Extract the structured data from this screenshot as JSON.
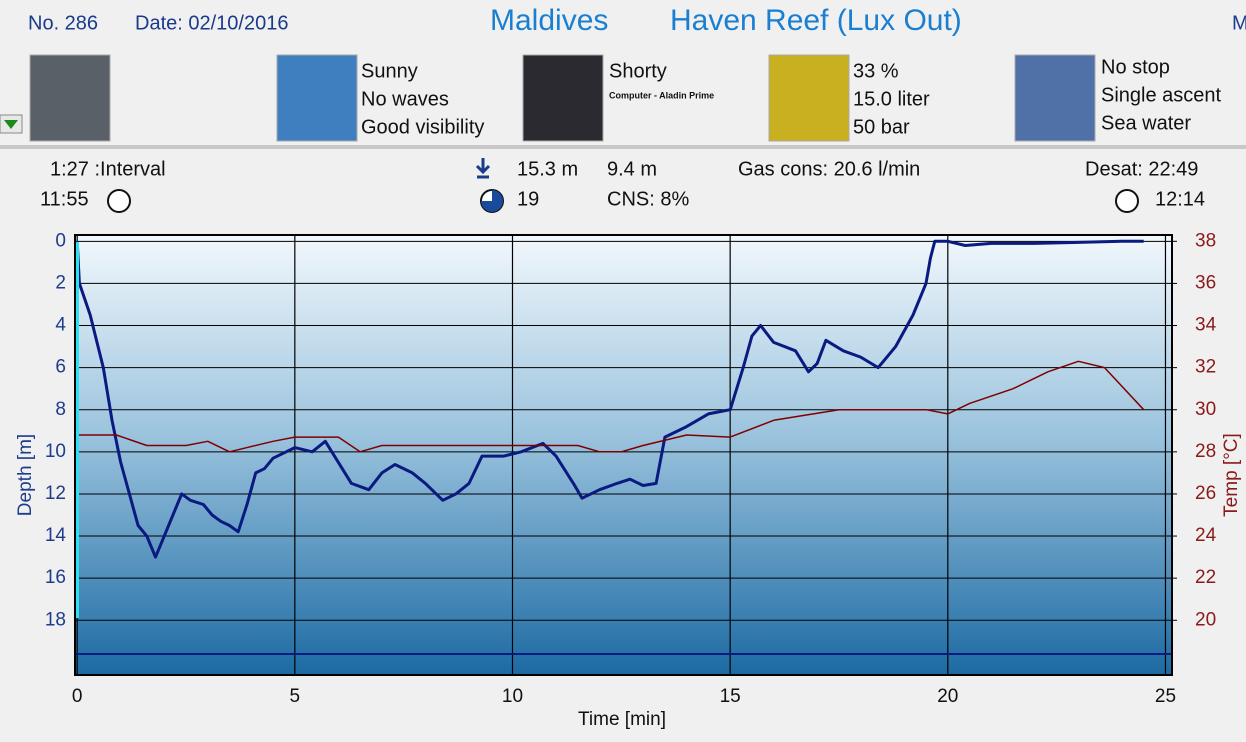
{
  "header": {
    "number": "No. 286",
    "date": "Date: 02/10/2016",
    "location": "Maldives",
    "site": "Haven Reef (Lux Out)",
    "cut": "M"
  },
  "conditions": {
    "weather": [
      "Sunny",
      "No waves",
      "Good visibility"
    ],
    "suit": [
      "Shorty",
      "Computer - Aladin Prime"
    ],
    "tank": [
      "33 %",
      "15.0 liter",
      "50 bar"
    ],
    "dive": [
      "No stop",
      "Single ascent",
      "Sea water"
    ]
  },
  "stats": {
    "interval": "1:27 :Interval",
    "entry_time": "11:55",
    "max_depth": "15.3 m",
    "avg_depth": "9.4 m",
    "gas_cons": "Gas cons: 20.6 l/min",
    "desat": "Desat: 22:49",
    "duration": "19",
    "cns": "CNS:  8%",
    "exit_time": "12:14"
  },
  "chart_data": {
    "type": "line",
    "x_label": "Time [min]",
    "y_label": "Depth [m]",
    "y2_label": "Temp [°C]",
    "xlim": [
      -0.05,
      25.15
    ],
    "xticks": [
      0,
      5,
      10,
      15,
      20,
      25
    ],
    "ylim": [
      20.6,
      -0.3
    ],
    "yticks": [
      0,
      2,
      4,
      6,
      8,
      10,
      12,
      14,
      16,
      18
    ],
    "y2lim": [
      17.4,
      38.3
    ],
    "y2ticks": [
      20,
      22,
      24,
      26,
      28,
      30,
      32,
      34,
      36,
      38
    ],
    "grid": true,
    "series": [
      {
        "color": "#0a1a80",
        "x": [
          0,
          0.05,
          0.3,
          0.6,
          0.8,
          1.0,
          1.2,
          1.4,
          1.6,
          1.8,
          1.9,
          2.1,
          2.3,
          2.4,
          2.6,
          2.9,
          3.1,
          3.3,
          3.5,
          3.7,
          3.9,
          4.1,
          4.3,
          4.5,
          5.0,
          5.4,
          5.7,
          6.0,
          6.3,
          6.7,
          7.0,
          7.3,
          7.7,
          8.0,
          8.4,
          8.7,
          9.0,
          9.3,
          9.8,
          10.2,
          10.7,
          11.0,
          11.4,
          11.6,
          12.0,
          12.4,
          12.7,
          13.0,
          13.3,
          13.5,
          14.0,
          14.5,
          15.0,
          15.3,
          15.5,
          15.7,
          16.0,
          16.5,
          16.8,
          17.0,
          17.2,
          17.6,
          18.0,
          18.4,
          18.8,
          19.2,
          19.5,
          19.6,
          19.7,
          20.0,
          20.4,
          21.0,
          22.0,
          23.0,
          24.0,
          24.5
        ],
        "values": [
          0,
          2,
          3.5,
          6,
          8.5,
          10.5,
          12,
          13.5,
          14,
          15,
          14.5,
          13.5,
          12.5,
          12,
          12.3,
          12.5,
          13,
          13.3,
          13.5,
          13.8,
          12.5,
          11,
          10.8,
          10.3,
          9.8,
          10,
          9.5,
          10.5,
          11.5,
          11.8,
          11,
          10.6,
          11,
          11.5,
          12.3,
          12,
          11.5,
          10.2,
          10.2,
          10,
          9.6,
          10.2,
          11.5,
          12.2,
          11.8,
          11.5,
          11.3,
          11.6,
          11.5,
          9.3,
          8.8,
          8.2,
          8,
          6,
          4.5,
          4,
          4.8,
          5.2,
          6.2,
          5.8,
          4.7,
          5.2,
          5.5,
          6,
          5,
          3.5,
          2,
          0.8,
          0,
          0,
          0.2,
          0.1,
          0.1,
          0.05,
          0,
          0
        ]
      },
      {
        "color": "#800000",
        "axis": "y2",
        "x": [
          0,
          0.9,
          1.6,
          2.5,
          3.0,
          3.5,
          4.5,
          5.0,
          6.0,
          6.5,
          7.0,
          11.5,
          12.0,
          12.5,
          13.0,
          14.0,
          15.0,
          16.0,
          17.5,
          18.5,
          19.5,
          20.0,
          20.5,
          21.5,
          22.3,
          23.0,
          23.6,
          24.5
        ],
        "values": [
          28.8,
          28.8,
          28.3,
          28.3,
          28.5,
          28,
          28.5,
          28.7,
          28.7,
          28,
          28.3,
          28.3,
          28,
          28,
          28.3,
          28.8,
          28.7,
          29.5,
          30,
          30,
          30,
          29.8,
          30.3,
          31,
          31.8,
          32.3,
          32,
          30
        ]
      }
    ]
  }
}
